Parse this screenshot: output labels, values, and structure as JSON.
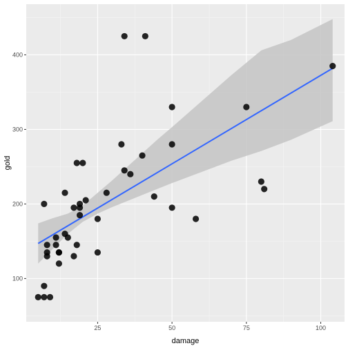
{
  "chart_data": {
    "type": "scatter",
    "xlabel": "damage",
    "ylabel": "gold",
    "xlim": [
      1,
      108
    ],
    "ylim": [
      42,
      468
    ],
    "x_ticks": [
      25,
      50,
      75,
      100
    ],
    "y_ticks": [
      100,
      200,
      300,
      400
    ],
    "x_tick_labels": [
      "25",
      "50",
      "75",
      "100"
    ],
    "y_tick_labels": [
      "100",
      "200",
      "300",
      "400"
    ],
    "grid": true,
    "points": [
      {
        "x": 5,
        "y": 75
      },
      {
        "x": 7,
        "y": 75
      },
      {
        "x": 9,
        "y": 75
      },
      {
        "x": 7,
        "y": 90
      },
      {
        "x": 7,
        "y": 200
      },
      {
        "x": 8,
        "y": 130
      },
      {
        "x": 8,
        "y": 135
      },
      {
        "x": 8,
        "y": 145
      },
      {
        "x": 11,
        "y": 155
      },
      {
        "x": 11,
        "y": 145
      },
      {
        "x": 12,
        "y": 135
      },
      {
        "x": 12,
        "y": 135
      },
      {
        "x": 12,
        "y": 120
      },
      {
        "x": 14,
        "y": 215
      },
      {
        "x": 14,
        "y": 160
      },
      {
        "x": 15,
        "y": 155
      },
      {
        "x": 17,
        "y": 130
      },
      {
        "x": 17,
        "y": 195
      },
      {
        "x": 18,
        "y": 255
      },
      {
        "x": 18,
        "y": 145
      },
      {
        "x": 19,
        "y": 200
      },
      {
        "x": 19,
        "y": 195
      },
      {
        "x": 19,
        "y": 185
      },
      {
        "x": 20,
        "y": 255
      },
      {
        "x": 21,
        "y": 205
      },
      {
        "x": 25,
        "y": 180
      },
      {
        "x": 25,
        "y": 135
      },
      {
        "x": 28,
        "y": 215
      },
      {
        "x": 33,
        "y": 280
      },
      {
        "x": 34,
        "y": 245
      },
      {
        "x": 34,
        "y": 425
      },
      {
        "x": 36,
        "y": 240
      },
      {
        "x": 40,
        "y": 265
      },
      {
        "x": 41,
        "y": 425
      },
      {
        "x": 44,
        "y": 210
      },
      {
        "x": 50,
        "y": 330
      },
      {
        "x": 50,
        "y": 280
      },
      {
        "x": 50,
        "y": 195
      },
      {
        "x": 58,
        "y": 180
      },
      {
        "x": 75,
        "y": 330
      },
      {
        "x": 80,
        "y": 230
      },
      {
        "x": 81,
        "y": 220
      },
      {
        "x": 104,
        "y": 385
      }
    ],
    "smooth": {
      "method": "lm",
      "line": [
        {
          "x": 5,
          "y": 147
        },
        {
          "x": 104,
          "y": 382
        }
      ],
      "ribbon": [
        {
          "x": 5,
          "lower": 120,
          "upper": 174
        },
        {
          "x": 10,
          "lower": 140,
          "upper": 181
        },
        {
          "x": 15,
          "lower": 160,
          "upper": 187
        },
        {
          "x": 20,
          "lower": 176,
          "upper": 198
        },
        {
          "x": 25,
          "lower": 187,
          "upper": 215
        },
        {
          "x": 30,
          "lower": 196,
          "upper": 232
        },
        {
          "x": 35,
          "lower": 204,
          "upper": 250
        },
        {
          "x": 40,
          "lower": 212,
          "upper": 268
        },
        {
          "x": 45,
          "lower": 220,
          "upper": 286
        },
        {
          "x": 50,
          "lower": 228,
          "upper": 303
        },
        {
          "x": 60,
          "lower": 243,
          "upper": 338
        },
        {
          "x": 70,
          "lower": 258,
          "upper": 373
        },
        {
          "x": 80,
          "lower": 271,
          "upper": 406
        },
        {
          "x": 90,
          "lower": 286,
          "upper": 420
        },
        {
          "x": 104,
          "lower": 311,
          "upper": 448
        }
      ],
      "line_color": "#3366ff",
      "ribbon_color": "#c4c4c4"
    },
    "colors": {
      "panel": "#ebebeb",
      "grid_major": "#ffffff",
      "point": "#000000"
    }
  }
}
